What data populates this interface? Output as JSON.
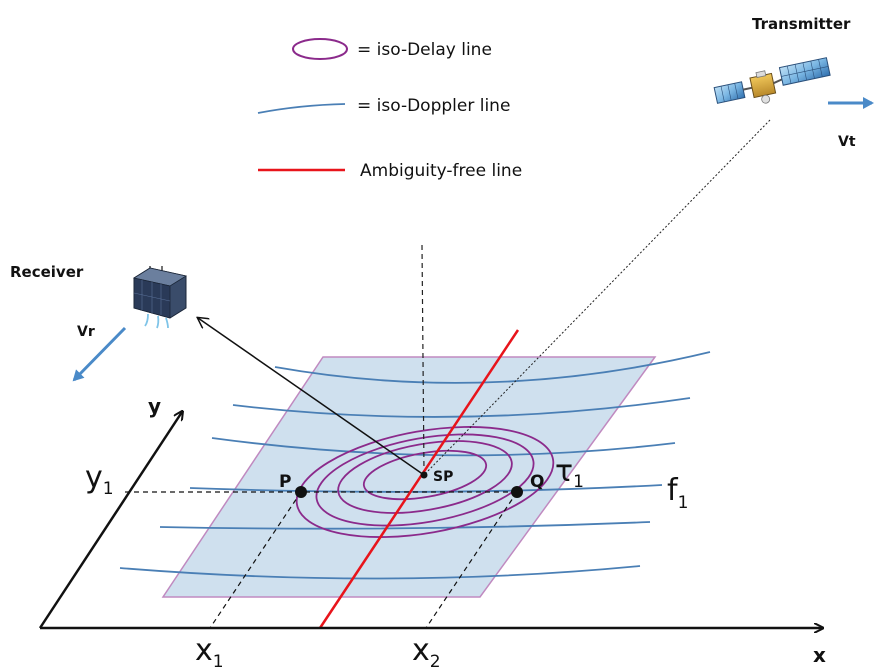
{
  "legend": {
    "iso_delay": "= iso-Delay line",
    "iso_doppler": "= iso-Doppler line",
    "ambiguity_free": "Ambiguity-free line"
  },
  "labels": {
    "transmitter": "Transmitter",
    "receiver": "Receiver",
    "vt": "Vt",
    "vr": "Vr",
    "sp": "SP",
    "p": "P",
    "q": "Q",
    "tau": "τ",
    "tau_sub": "1",
    "f": "f",
    "f_sub": "1",
    "y_axis": "y",
    "x_axis": "x",
    "y_tick": "y",
    "y_tick_sub": "1",
    "x1_tick": "x",
    "x1_tick_sub": "1",
    "x2_tick": "x",
    "x2_tick_sub": "2"
  },
  "colors": {
    "iso_delay": "#8b2a8b",
    "iso_doppler": "#4a7fb5",
    "ambiguity_free": "#e8141b",
    "surface_fill": "#cfe0ee",
    "surface_edge": "#c08ac0",
    "velocity_arrow": "#4a8ac8"
  }
}
